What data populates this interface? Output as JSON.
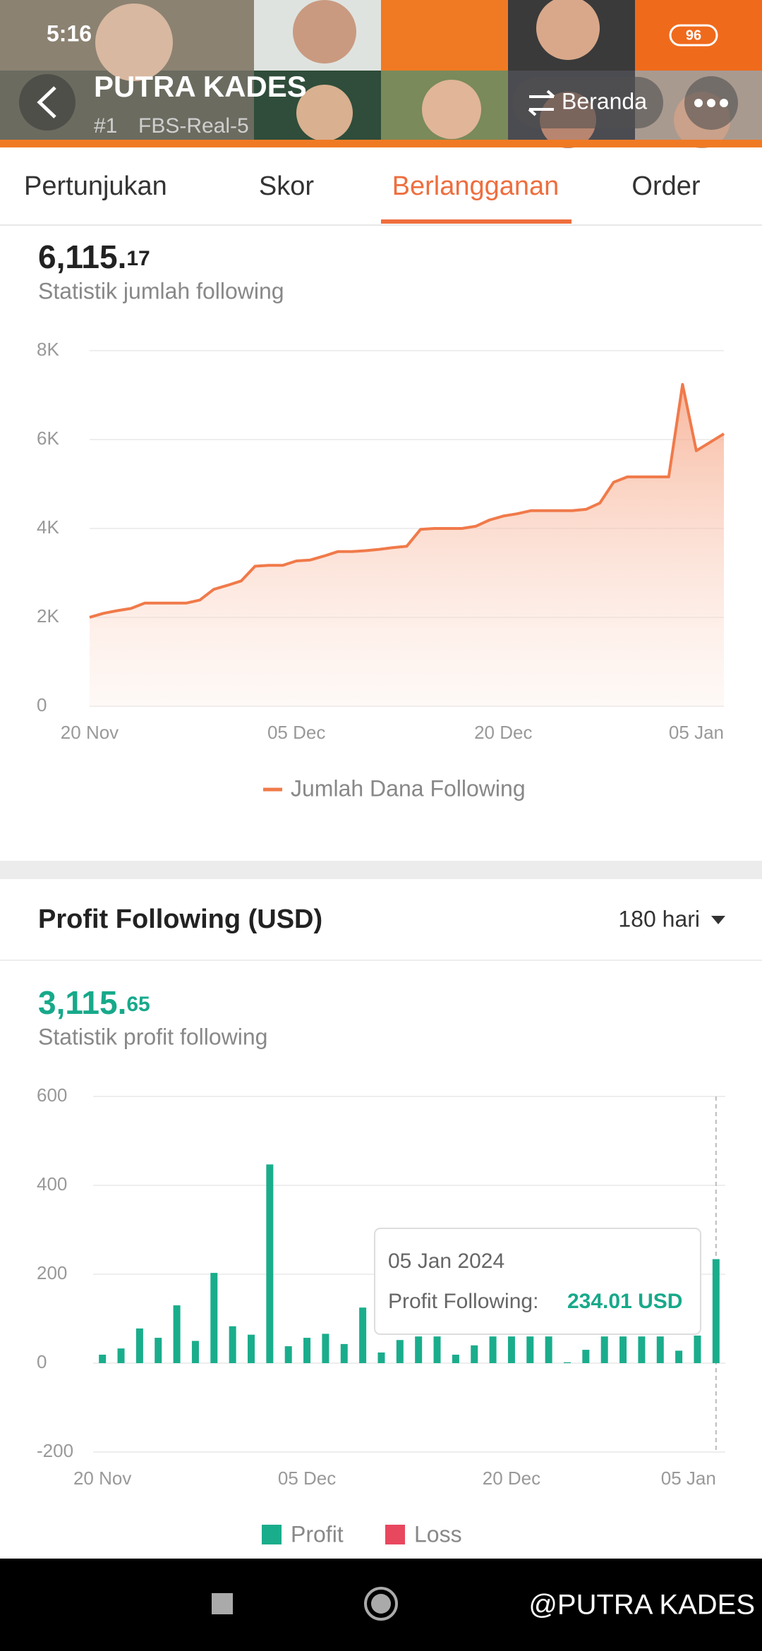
{
  "status_bar": {
    "time": "5:16",
    "battery": "96"
  },
  "header": {
    "name": "PUTRA KADES",
    "rank": "#1",
    "account": "FBS-Real-5",
    "home_button": "Beranda"
  },
  "tabs": [
    "Pertunjukan",
    "Skor",
    "Berlangganan",
    "Order"
  ],
  "following_total": {
    "amount": "6,115.17",
    "caption": "Statistik jumlah following"
  },
  "profit_section": {
    "title": "Profit Following (USD)",
    "period": "180 hari",
    "amount": "3,115.65",
    "caption": "Statistik profit following"
  },
  "tooltip": {
    "date": "05 Jan 2024",
    "label": "Profit Following:",
    "value": "234.01 USD"
  },
  "watermark": "@PUTRA KADES",
  "chart_data": [
    {
      "type": "line",
      "x": [
        0,
        1,
        2,
        3,
        4,
        5,
        6,
        7,
        8,
        9,
        10,
        11,
        12,
        13,
        14,
        15,
        16,
        17,
        18,
        19,
        20,
        21,
        22,
        23,
        24,
        25,
        26,
        27,
        28,
        29,
        30,
        31,
        32,
        33,
        34,
        35,
        36,
        37,
        38,
        39,
        40,
        41,
        42,
        43,
        44,
        45,
        46
      ],
      "series": [
        {
          "name": "Jumlah Dana Following",
          "color": "#f07a4a",
          "values": [
            2000,
            2090,
            2150,
            2200,
            2320,
            2320,
            2320,
            2320,
            2390,
            2630,
            2720,
            2820,
            3150,
            3170,
            3170,
            3270,
            3290,
            3380,
            3480,
            3480,
            3500,
            3530,
            3570,
            3600,
            3980,
            4000,
            4000,
            4000,
            4050,
            4190,
            4280,
            4330,
            4400,
            4400,
            4400,
            4400,
            4430,
            4570,
            5040,
            5160,
            5160,
            5160,
            5160,
            7240,
            5750,
            5940,
            6130
          ]
        }
      ],
      "xlim": [
        0,
        46
      ],
      "xticks": [
        {
          "value": 0,
          "label": "20 Nov"
        },
        {
          "value": 15,
          "label": "05 Dec"
        },
        {
          "value": 30,
          "label": "20 Dec"
        },
        {
          "value": 46,
          "label": "05 Jan"
        }
      ],
      "ylim": [
        0,
        8000
      ],
      "yticks": [
        0,
        {
          "value": 2000,
          "label": "2K"
        },
        {
          "value": 4000,
          "label": "4K"
        },
        {
          "value": 6000,
          "label": "6K"
        },
        {
          "value": 8000,
          "label": "8K"
        }
      ],
      "grid": true,
      "legend": "bottom"
    },
    {
      "type": "bar",
      "categories": [
        "20 Nov",
        null,
        null,
        null,
        null,
        null,
        null,
        null,
        null,
        null,
        null,
        "05 Dec",
        null,
        null,
        null,
        null,
        null,
        null,
        null,
        null,
        null,
        null,
        "20 Dec",
        null,
        null,
        null,
        null,
        null,
        null,
        null,
        null,
        null,
        null,
        "05 Jan"
      ],
      "series": [
        {
          "name": "Profit",
          "color": "#1aad8c",
          "values": [
            19,
            33,
            78,
            57,
            130,
            50,
            203,
            83,
            64,
            447,
            38,
            57,
            66,
            43,
            125,
            24,
            52,
            60,
            60,
            19,
            40,
            60,
            60,
            60,
            60,
            2,
            30,
            60,
            60,
            60,
            60,
            28,
            62,
            234.01
          ]
        },
        {
          "name": "Loss",
          "color": "#e8485e",
          "values": [
            null,
            null,
            null,
            null,
            null,
            null,
            null,
            null,
            null,
            null,
            null,
            null,
            null,
            null,
            null,
            null,
            null,
            null,
            null,
            null,
            null,
            null,
            null,
            null,
            null,
            null,
            null,
            null,
            null,
            null,
            null,
            null,
            null,
            null
          ]
        }
      ],
      "ylim": [
        -200,
        600
      ],
      "yticks": [
        -200,
        0,
        200,
        400,
        600
      ],
      "grid": true,
      "legend": "bottom"
    }
  ]
}
